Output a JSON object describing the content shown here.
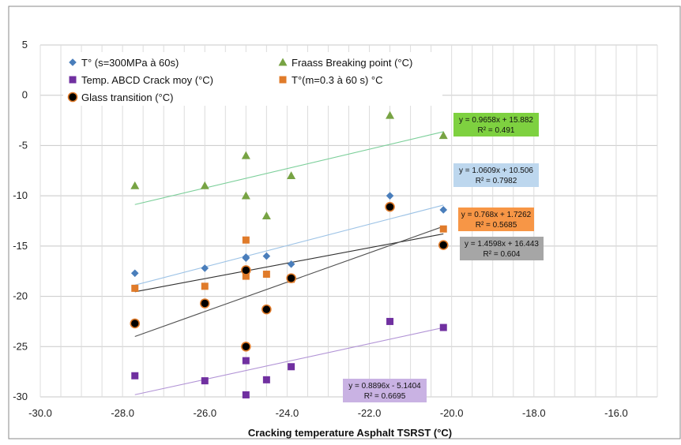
{
  "chart_data": {
    "type": "scatter",
    "title": "",
    "xlabel": "Cracking temperature Asphalt TSRST (°C)",
    "ylabel": "",
    "xlim": [
      -30,
      -15
    ],
    "ylim": [
      -30,
      5
    ],
    "x_ticks": [
      -30,
      -28,
      -26,
      -24,
      -22,
      -20,
      -18,
      -16
    ],
    "x_tick_labels": [
      "-30.0",
      "-28.0",
      "-26.0",
      "-24.0",
      "-22.0",
      "-20.0",
      "-18.0",
      "-16.0"
    ],
    "y_ticks": [
      5,
      0,
      -5,
      -10,
      -15,
      -20,
      -25,
      -30
    ],
    "y_tick_labels": [
      "5",
      "0",
      "-5",
      "-10",
      "-15",
      "-20",
      "-25",
      "-30"
    ],
    "grid": true,
    "legend_position": "top-left",
    "series": [
      {
        "name": "T° (s=300MPa à 60s)",
        "marker": "diamond",
        "color": "#4a7ebb",
        "trend_color": "#9dc3e6",
        "x": [
          -27.7,
          -26.0,
          -25.0,
          -25.0,
          -24.5,
          -23.9,
          -21.5,
          -20.2
        ],
        "y": [
          -17.7,
          -17.2,
          -16.1,
          -16.2,
          -16.0,
          -16.8,
          -10.0,
          -11.4
        ],
        "trend": {
          "slope": 1.0609,
          "intercept": 10.506
        },
        "equation": "y = 1.0609x + 10.506",
        "r2": "R² = 0.7982",
        "eq_bg": "#bdd7ee"
      },
      {
        "name": "Fraass Breaking point (°C)",
        "marker": "triangle",
        "color": "#77a343",
        "trend_color": "#7ccf9a",
        "x": [
          -27.7,
          -26.0,
          -25.0,
          -25.0,
          -24.5,
          -23.9,
          -21.5,
          -20.2
        ],
        "y": [
          -9.0,
          -9.0,
          -6.0,
          -10.0,
          -12.0,
          -8.0,
          -2.0,
          -4.0
        ],
        "trend": {
          "slope": 0.9658,
          "intercept": 15.882
        },
        "equation": "y = 0.9658x + 15.882",
        "r2": "R² = 0.491",
        "eq_bg": "#7ed140"
      },
      {
        "name": "Temp. ABCD Crack moy (°C)",
        "marker": "square",
        "color": "#7030a0",
        "trend_color": "#b294d6",
        "x": [
          -27.7,
          -26.0,
          -25.0,
          -25.0,
          -24.5,
          -23.9,
          -21.5,
          -20.2
        ],
        "y": [
          -27.9,
          -28.4,
          -29.8,
          -26.4,
          -28.3,
          -27.0,
          -22.5,
          -23.1
        ],
        "trend": {
          "slope": 0.8896,
          "intercept": -5.1404
        },
        "equation": "y = 0.8896x - 5.1404",
        "r2": "R² = 0.6695",
        "eq_bg": "#c9b2e3"
      },
      {
        "name": "T°(m=0.3 à 60 s) °C",
        "marker": "square",
        "color": "#e07b2a",
        "trend_color": "#303030",
        "x": [
          -27.7,
          -26.0,
          -25.0,
          -25.0,
          -24.5,
          -23.9,
          -20.2
        ],
        "y": [
          -19.2,
          -19.0,
          -14.4,
          -18.0,
          -17.8,
          -18.3,
          -13.3
        ],
        "trend": {
          "slope": 0.768,
          "intercept": 1.7262
        },
        "equation": "y = 0.768x + 1.7262",
        "r2": "R² = 0.5685",
        "eq_bg": "#f79646"
      },
      {
        "name": "Glass transition (°C)",
        "marker": "circle",
        "color": "#000000",
        "trend_color": "#505050",
        "x": [
          -27.7,
          -26.0,
          -25.0,
          -25.0,
          -24.5,
          -23.9,
          -21.5,
          -20.2
        ],
        "y": [
          -22.7,
          -20.7,
          -17.4,
          -25.0,
          -21.3,
          -18.2,
          -11.1,
          -14.9
        ],
        "trend": {
          "slope": 1.4598,
          "intercept": 16.443
        },
        "equation": "y = 1.4598x + 16.443",
        "r2": "R² = 0.604",
        "eq_bg": "#a6a6a6"
      }
    ]
  }
}
